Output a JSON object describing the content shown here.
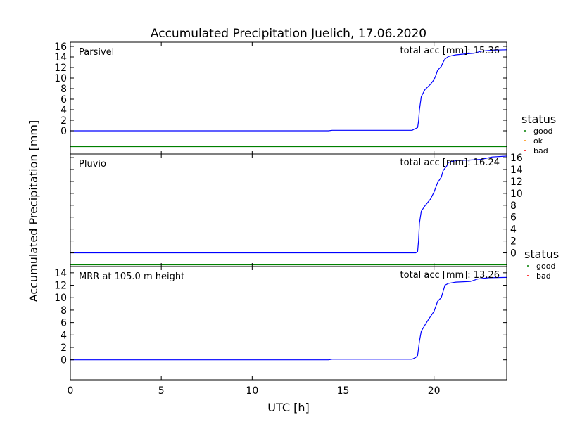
{
  "chart_data": {
    "type": "line",
    "title": "Accumulated Precipitation Juelich, 17.06.2020",
    "xlabel": "UTC [h]",
    "ylabel": "Accumulated Precipitation [mm]",
    "xlim": [
      0,
      24
    ],
    "x_ticks": [
      0,
      5,
      10,
      15,
      20
    ],
    "grid": false,
    "colors": {
      "accumulation": "#0000ff",
      "status_good": "#008000",
      "status_ok": "#ff8c00",
      "status_bad": "#ff0000"
    },
    "panels": [
      {
        "label": "Parsivel",
        "total_label": "total acc [mm]: 15.36",
        "y_ticks": [
          0,
          2,
          4,
          6,
          8,
          10,
          12,
          14,
          16
        ],
        "ylim": [
          -4.4,
          16.8
        ],
        "status_y": -3.0,
        "y_axis_side": "left",
        "legend": {
          "title": "status",
          "entries": [
            "good",
            "ok",
            "bad"
          ]
        },
        "series": [
          {
            "values": [
              [
                0,
                0
              ],
              [
                14.2,
                0
              ],
              [
                14.4,
                0.1
              ],
              [
                18.8,
                0.1
              ],
              [
                18.9,
                0.3
              ],
              [
                19.1,
                0.6
              ],
              [
                19.15,
                1.8
              ],
              [
                19.2,
                4
              ],
              [
                19.3,
                6.5
              ],
              [
                19.5,
                7.8
              ],
              [
                19.8,
                8.8
              ],
              [
                20.0,
                9.7
              ],
              [
                20.1,
                10.5
              ],
              [
                20.2,
                11.5
              ],
              [
                20.4,
                12.2
              ],
              [
                20.5,
                13.0
              ],
              [
                20.6,
                13.6
              ],
              [
                20.8,
                14.1
              ],
              [
                21.2,
                14.4
              ],
              [
                21.8,
                14.6
              ],
              [
                22.2,
                14.7
              ],
              [
                22.6,
                15.1
              ],
              [
                23.2,
                15.3
              ],
              [
                24.0,
                15.36
              ]
            ]
          }
        ]
      },
      {
        "label": "Pluvio",
        "total_label": "total acc [mm]: 16.24",
        "y_ticks": [
          0,
          2,
          4,
          6,
          8,
          10,
          12,
          14,
          16
        ],
        "ylim": [
          -2.3,
          16.6
        ],
        "status_y": -2.0,
        "y_axis_side": "right",
        "legend": {
          "title": "status",
          "entries": [
            "good",
            "bad"
          ]
        },
        "series": [
          {
            "values": [
              [
                0,
                0
              ],
              [
                19.0,
                0
              ],
              [
                19.1,
                0.2
              ],
              [
                19.15,
                2
              ],
              [
                19.2,
                5
              ],
              [
                19.3,
                7.0
              ],
              [
                19.5,
                7.9
              ],
              [
                19.8,
                9.0
              ],
              [
                20.0,
                10.2
              ],
              [
                20.2,
                11.8
              ],
              [
                20.4,
                12.7
              ],
              [
                20.5,
                13.8
              ],
              [
                20.7,
                14.6
              ],
              [
                20.8,
                15.2
              ],
              [
                21.2,
                15.5
              ],
              [
                22.0,
                15.6
              ],
              [
                22.6,
                15.7
              ],
              [
                23.2,
                16.1
              ],
              [
                24.0,
                16.24
              ]
            ]
          }
        ]
      },
      {
        "label": "MRR at 105.0 m height",
        "total_label": "total acc [mm]: 13.26",
        "y_ticks": [
          0,
          2,
          4,
          6,
          8,
          10,
          12,
          14
        ],
        "ylim": [
          -3.2,
          15.0
        ],
        "y_axis_side": "left",
        "series": [
          {
            "values": [
              [
                0,
                0
              ],
              [
                14.2,
                0
              ],
              [
                14.4,
                0.1
              ],
              [
                18.8,
                0.1
              ],
              [
                19.0,
                0.4
              ],
              [
                19.1,
                0.7
              ],
              [
                19.2,
                3
              ],
              [
                19.3,
                4.6
              ],
              [
                19.5,
                5.6
              ],
              [
                19.7,
                6.5
              ],
              [
                20.0,
                7.8
              ],
              [
                20.1,
                8.6
              ],
              [
                20.2,
                9.4
              ],
              [
                20.4,
                10.0
              ],
              [
                20.5,
                11.0
              ],
              [
                20.6,
                12.0
              ],
              [
                20.8,
                12.3
              ],
              [
                21.2,
                12.5
              ],
              [
                22.0,
                12.6
              ],
              [
                22.4,
                13.0
              ],
              [
                23.0,
                13.2
              ],
              [
                24.0,
                13.26
              ]
            ]
          }
        ]
      }
    ]
  }
}
